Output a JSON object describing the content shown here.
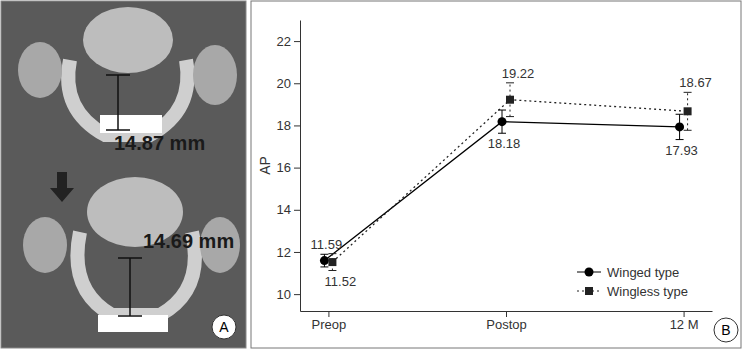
{
  "panel_a": {
    "label": "A",
    "measurements": [
      "14.87 mm",
      "14.69 mm"
    ]
  },
  "chart_data": {
    "type": "line",
    "y_label": "AP",
    "annotations": [
      "B"
    ],
    "categories": [
      "Preop",
      "Postop",
      "12 M"
    ],
    "series": [
      {
        "name": "Winged type",
        "color": "#000000",
        "marker": "circle",
        "line_style": "solid",
        "values": [
          11.59,
          18.18,
          17.93
        ],
        "errors": [
          0.3,
          0.55,
          0.6
        ]
      },
      {
        "name": "Wingless type",
        "color": "#222222",
        "marker": "square",
        "line_style": "dotted",
        "values": [
          11.52,
          19.22,
          18.67
        ],
        "errors": [
          0.4,
          0.8,
          0.9
        ]
      }
    ],
    "ylim": [
      9.2,
      23
    ],
    "yticks": [
      10,
      12,
      14,
      16,
      18,
      20,
      22
    ],
    "grid": false,
    "legend": "lower right",
    "data_labels": true
  }
}
